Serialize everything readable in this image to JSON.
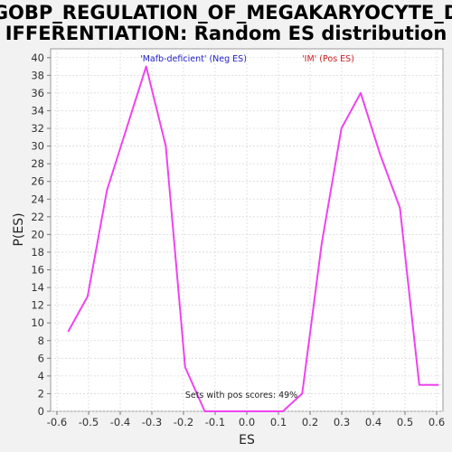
{
  "chart_data": {
    "type": "line",
    "title_lines": [
      "GOBP_REGULATION_OF_MEGAKARYOCYTE_D",
      "IFFERENTIATION: Random ES distribution"
    ],
    "xlabel": "ES",
    "ylabel": "P(ES)",
    "xlim": [
      -0.62,
      0.62
    ],
    "ylim": [
      0,
      41
    ],
    "xticks": [
      -0.6,
      -0.5,
      -0.4,
      -0.3,
      -0.2,
      -0.1,
      0.0,
      0.1,
      0.2,
      0.3,
      0.4,
      0.5,
      0.6
    ],
    "xtick_labels": [
      "-0.6",
      "-0.5",
      "-0.4",
      "-0.3",
      "-0.2",
      "-0.1",
      "0.0",
      "0.1",
      "0.2",
      "0.3",
      "0.4",
      "0.5",
      "0.6"
    ],
    "yticks": [
      0,
      2,
      4,
      6,
      8,
      10,
      12,
      14,
      16,
      18,
      20,
      22,
      24,
      26,
      28,
      30,
      32,
      34,
      36,
      38,
      40
    ],
    "grid": true,
    "series": [
      {
        "color": "#ee44ee",
        "x": [
          -0.565,
          -0.503,
          -0.442,
          -0.38,
          -0.318,
          -0.256,
          -0.195,
          -0.133,
          -0.071,
          -0.01,
          0.052,
          0.114,
          0.175,
          0.237,
          0.299,
          0.36,
          0.422,
          0.484,
          0.545,
          0.607
        ],
        "y": [
          9,
          13,
          25,
          32,
          39,
          30,
          5,
          0,
          0,
          0,
          0,
          0,
          2,
          19,
          32,
          36,
          29,
          23,
          3,
          3
        ]
      }
    ],
    "annotations": {
      "neg_label": "'Mafb-deficient' (Neg ES)",
      "neg_color": "#2222cc",
      "pos_label": "'IM' (Pos ES)",
      "pos_color": "#cc2222",
      "pos_scores": "Sets with pos scores: 49%"
    }
  }
}
